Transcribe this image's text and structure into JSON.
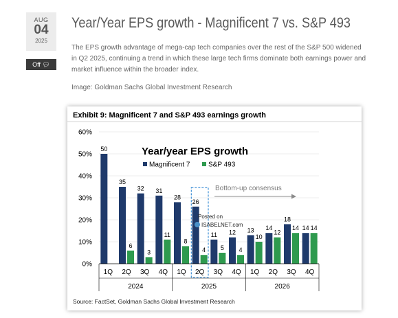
{
  "post": {
    "date": {
      "month": "AUG",
      "day": "04",
      "year": "2025"
    },
    "comments_label": "Off",
    "title": "Year/Year EPS growth - Magnificent 7 vs. S&P 493",
    "body": "The EPS growth advantage of mega-cap tech companies over the rest of the S&P 500 widened in Q2 2025, continuing a trend in which these large tech firms dominate both earnings power and market influence within the broader index.",
    "credit": "Image: Goldman Sachs Global Investment Research"
  },
  "exhibit": {
    "heading": "Exhibit 9: Magnificent 7 and S&P 493 earnings growth",
    "source": "Source: FactSet, Goldman Sachs Global Investment Research",
    "watermark_line1": "Posted on",
    "watermark_line2": "ISABELNET.com"
  },
  "chart_data": {
    "type": "bar",
    "title": "Year/year EPS growth",
    "annotation": "Bottom-up consensus",
    "categories": [
      "1Q",
      "2Q",
      "3Q",
      "4Q",
      "1Q",
      "2Q",
      "3Q",
      "4Q",
      "1Q",
      "2Q",
      "3Q",
      "4Q"
    ],
    "year_groups": [
      {
        "label": "2024",
        "start": 0,
        "end": 3
      },
      {
        "label": "2025",
        "start": 4,
        "end": 7
      },
      {
        "label": "2026",
        "start": 8,
        "end": 11
      }
    ],
    "series": [
      {
        "name": "Magnificent 7",
        "color": "#1f3a6b",
        "values": [
          50,
          35,
          32,
          31,
          28,
          26,
          11,
          12,
          13,
          14,
          18,
          14
        ]
      },
      {
        "name": "S&P 493",
        "color": "#2e9a4e",
        "values": [
          null,
          6,
          3,
          11,
          8,
          4,
          5,
          4,
          10,
          12,
          14,
          14
        ]
      }
    ],
    "ylim": [
      0,
      60
    ],
    "yticks": [
      "0%",
      "10%",
      "20%",
      "30%",
      "40%",
      "50%",
      "60%"
    ],
    "highlight_index": 5,
    "legend_position": "top"
  }
}
